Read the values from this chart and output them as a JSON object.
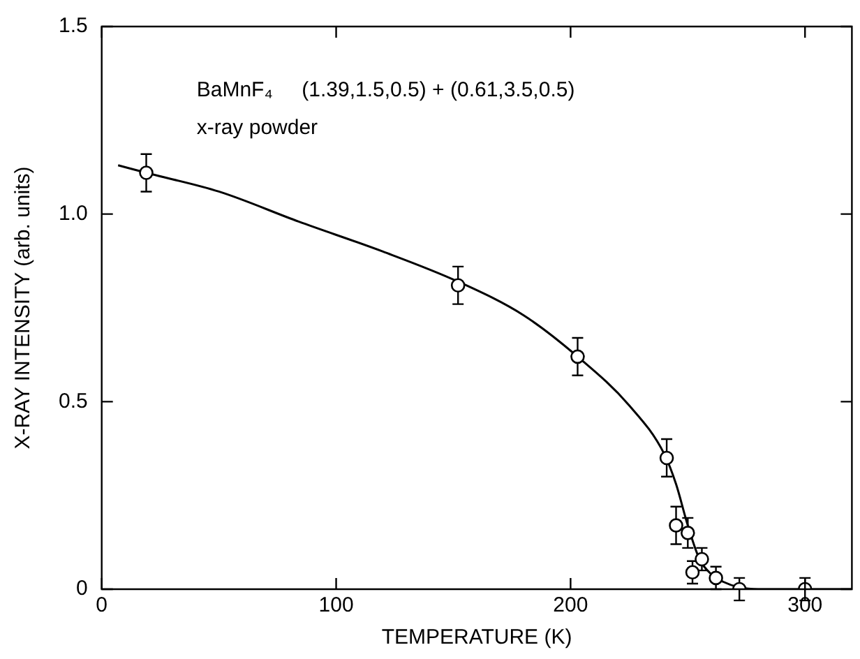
{
  "chart_data": {
    "type": "scatter",
    "xlabel": "TEMPERATURE (K)",
    "ylabel": "X-RAY INTENSITY (arb. units)",
    "annotations": [
      "BaMnF₄     (1.39,1.5,0.5) + (0.61,3.5,0.5)",
      "x-ray powder"
    ],
    "series": [
      {
        "type": "scatter",
        "color": "#000000",
        "marker": "circle",
        "x": [
          19,
          152,
          203,
          241,
          245,
          250,
          252,
          256,
          262,
          272,
          300
        ],
        "values": [
          1.11,
          0.81,
          0.62,
          0.35,
          0.17,
          0.15,
          0.045,
          0.08,
          0.03,
          0.0,
          0.0
        ],
        "errors": [
          0.05,
          0.05,
          0.05,
          0.05,
          0.05,
          0.04,
          0.03,
          0.03,
          0.03,
          0.03,
          0.03
        ]
      },
      {
        "type": "line",
        "color": "#000000",
        "marker": "none",
        "line_style": "solid",
        "x": [
          7,
          19,
          50,
          84,
          120,
          152,
          180,
          203,
          225,
          240,
          245,
          250,
          255,
          260,
          265,
          272,
          280,
          320
        ],
        "values": [
          1.13,
          1.11,
          1.06,
          0.98,
          0.9,
          0.82,
          0.73,
          0.62,
          0.49,
          0.36,
          0.28,
          0.17,
          0.08,
          0.04,
          0.02,
          0.005,
          0,
          0
        ]
      }
    ],
    "xlim": [
      0,
      320
    ],
    "xticks": [
      0,
      100,
      200,
      300
    ],
    "ylim": [
      0,
      1.5
    ],
    "yticks": [
      0,
      0.5,
      {
        "value": 1.0,
        "label": "1.0"
      },
      1.5
    ],
    "grid": false,
    "legend": false
  }
}
